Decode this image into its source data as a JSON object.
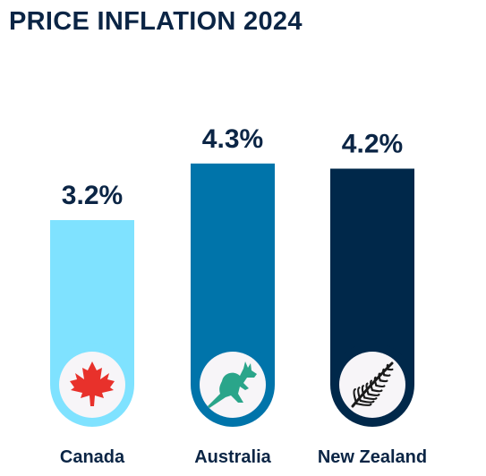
{
  "chart_data": {
    "type": "bar",
    "title": "PRICE INFLATION 2024",
    "categories": [
      "Canada",
      "Australia",
      "New Zealand"
    ],
    "values": [
      3.2,
      4.3,
      4.2
    ],
    "value_labels": [
      "3.2%",
      "4.3%",
      "4.2%"
    ],
    "unit": "%",
    "bar_colors": [
      "#7fe2ff",
      "#0074aa",
      "#00284a"
    ],
    "icons": [
      "maple-leaf-icon",
      "kangaroo-icon",
      "silver-fern-icon"
    ],
    "icon_colors": [
      "#e8312b",
      "#2aa58a",
      "#1a1a1a"
    ],
    "grid": false,
    "legend": "none"
  }
}
